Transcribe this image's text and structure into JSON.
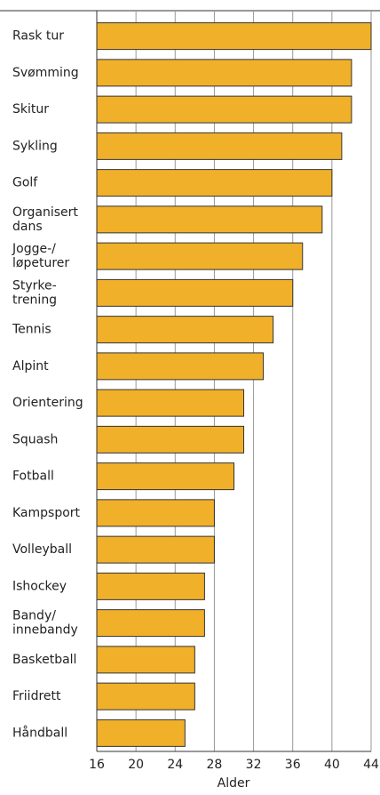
{
  "chart_data": {
    "type": "bar",
    "orientation": "horizontal",
    "categories": [
      "Rask tur",
      "Svømming",
      "Skitur",
      "Sykling",
      "Golf",
      "Organisert\ndans",
      "Jogge-/\nløpeturer",
      "Styrke-\ntrening",
      "Tennis",
      "Alpint",
      "Orientering",
      "Squash",
      "Fotball",
      "Kampsport",
      "Volleyball",
      "Ishockey",
      "Bandy/\ninnebandy",
      "Basketball",
      "Friidrett",
      "Håndball"
    ],
    "values": [
      44,
      42,
      42,
      41,
      40,
      39,
      37,
      36,
      34,
      33,
      31,
      31,
      30,
      28,
      28,
      27,
      27,
      26,
      26,
      25
    ],
    "color": "#f0b02a",
    "xlabel": "Alder",
    "xlim": [
      16,
      44
    ],
    "xticks": [
      16,
      20,
      24,
      28,
      32,
      36,
      40,
      44
    ],
    "grid": true
  }
}
